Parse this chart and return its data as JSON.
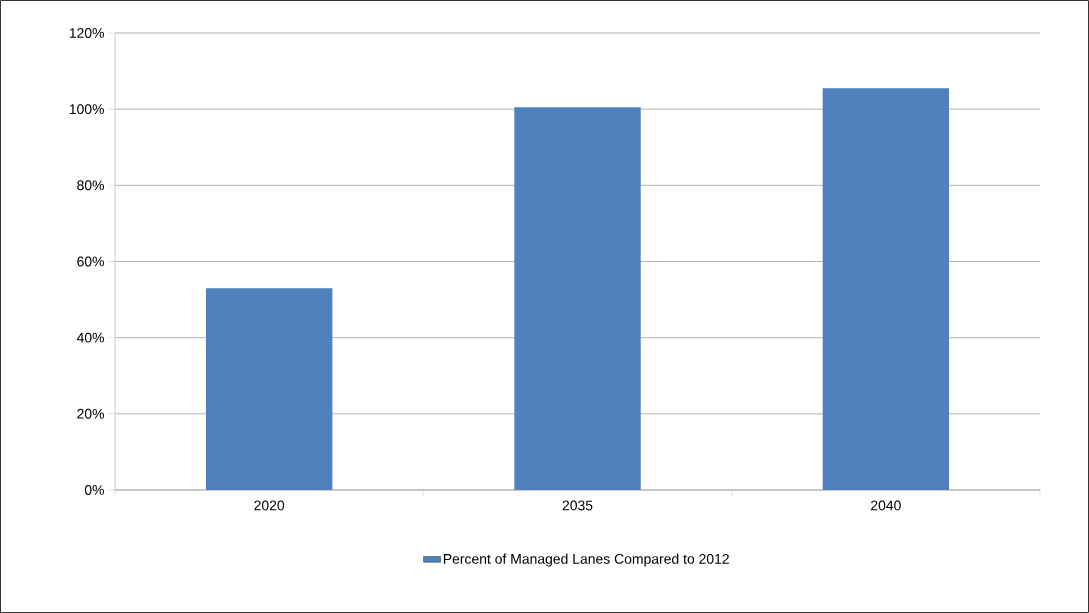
{
  "chart_data": {
    "type": "bar",
    "categories": [
      "2020",
      "2035",
      "2040"
    ],
    "series": [
      {
        "name": "Percent of Managed Lanes Compared to 2012",
        "color": "#4f81bd",
        "values": [
          53,
          100.5,
          105.5
        ]
      }
    ],
    "ylim": [
      0,
      120
    ],
    "yticks": [
      {
        "value": 0,
        "label": "0%"
      },
      {
        "value": 20,
        "label": "20%"
      },
      {
        "value": 40,
        "label": "40%"
      },
      {
        "value": 60,
        "label": "60%"
      },
      {
        "value": 80,
        "label": "80%"
      },
      {
        "value": 100,
        "label": "100%"
      },
      {
        "value": 120,
        "label": "120%"
      }
    ],
    "grid": "y",
    "legend": "bottom"
  }
}
